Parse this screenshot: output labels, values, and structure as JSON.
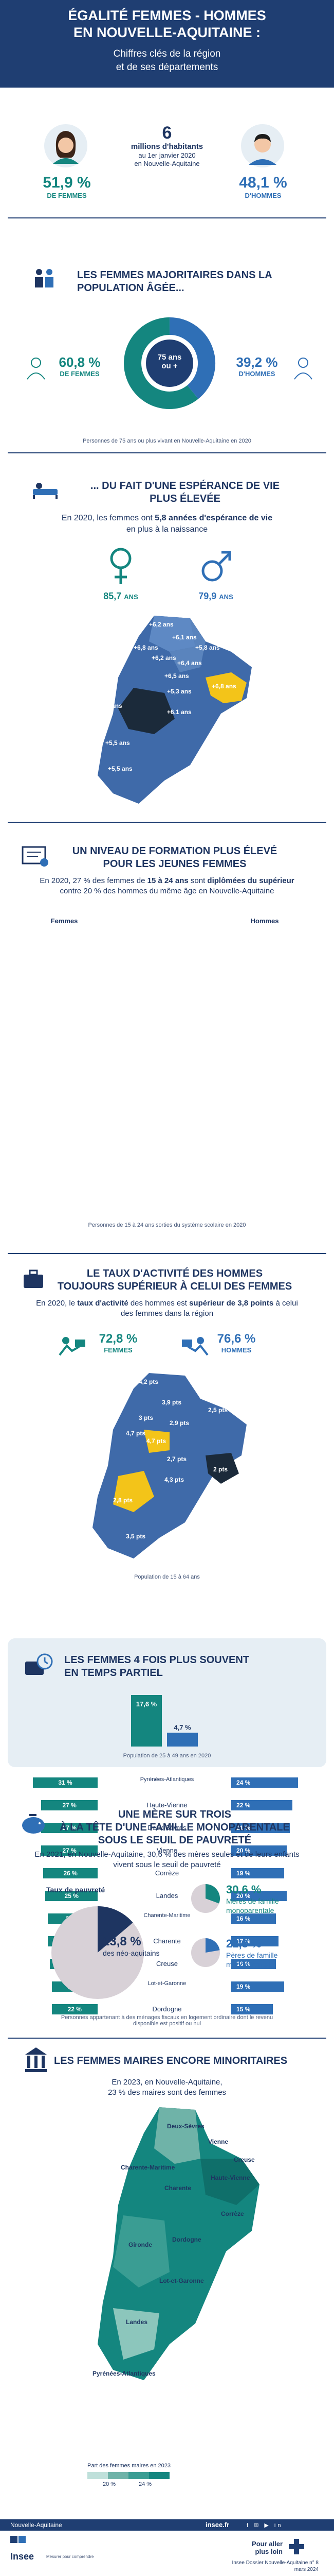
{
  "header": {
    "title_line1": "ÉGALITÉ FEMMES - HOMMES",
    "title_line2": "EN NOUVELLE-AQUITAINE :",
    "subtitle_line1": "Chiffres clés de la région",
    "subtitle_line2": "et de ses départements"
  },
  "population": {
    "total": "6",
    "total_label": "millions d'habitants",
    "date_line": "au 1er janvier 2020",
    "region_line": "en Nouvelle-Aquitaine",
    "women_pct": "51,9 %",
    "women_label": "DE FEMMES",
    "men_pct": "48,1 %",
    "men_label": "D'HOMMES"
  },
  "elderly": {
    "title_line1": "LES FEMMES MAJORITAIRES DANS LA",
    "title_line2": "POPULATION ÂGÉE...",
    "women_pct": "60,8 %",
    "women_label": "DE FEMMES",
    "men_pct": "39,2 %",
    "men_label": "D'HOMMES",
    "center_line1": "75 ans",
    "center_line2": "ou +",
    "note": "Personnes de 75 ans ou plus vivant en Nouvelle-Aquitaine en 2020",
    "women_share": 60.8,
    "men_share": 39.2,
    "colors": {
      "women": "#14867f",
      "men": "#2f6fb6"
    }
  },
  "life_expectancy": {
    "title_line1": "... DU FAIT D'UNE ESPÉRANCE DE VIE",
    "title_line2": "PLUS ÉLEVÉE",
    "text_pre": "En 2020, les femmes ont ",
    "text_bold": "5,8 années d'espérance de vie",
    "text_post": "en plus à la naissance",
    "women_value": "85,7",
    "men_value": "79,9",
    "unit": "ANS",
    "map_labels": [
      "+6,2 ans",
      "+6,1 ans",
      "+6,8 ans",
      "+6,2 ans",
      "+5,8 ans",
      "+6,4 ans",
      "+6,5 ans",
      "+5,3 ans",
      "+6,8 ans",
      "+5,1 ans",
      "+6,1 ans",
      "+5,5 ans",
      "+5,5 ans"
    ]
  },
  "education": {
    "title_line1": "UN NIVEAU DE FORMATION PLUS ÉLEVÉ",
    "title_line2": "POUR LES JEUNES FEMMES",
    "text_pre": "En 2020, 27 % des femmes de ",
    "text_bold1": "15 à 24 ans",
    "text_mid": " sont ",
    "text_bold2": "diplômées du supérieur",
    "text_post": " contre 20 % des hommes du même âge en Nouvelle-Aquitaine",
    "col_women": "Femmes",
    "col_men": "Hommes",
    "rows": [
      {
        "dep": "Gironde",
        "f": "32 %",
        "h": "22 %",
        "fv": 32,
        "hv": 22
      },
      {
        "dep": "Pyrénées-Atlantiques",
        "f": "31 %",
        "h": "24 %",
        "fv": 31,
        "hv": 24
      },
      {
        "dep": "Haute-Vienne",
        "f": "27 %",
        "h": "22 %",
        "fv": 27,
        "hv": 22
      },
      {
        "dep": "Deux-Sèvres",
        "f": "27 %",
        "h": "21 %",
        "fv": 27,
        "hv": 21
      },
      {
        "dep": "Vienne",
        "f": "27 %",
        "h": "20 %",
        "fv": 27,
        "hv": 20
      },
      {
        "dep": "Corrèze",
        "f": "26 %",
        "h": "19 %",
        "fv": 26,
        "hv": 19
      },
      {
        "dep": "Landes",
        "f": "25 %",
        "h": "20 %",
        "fv": 25,
        "hv": 20
      },
      {
        "dep": "Charente-Maritime",
        "f": "24 %",
        "h": "16 %",
        "fv": 24,
        "hv": 16
      },
      {
        "dep": "Charente",
        "f": "24 %",
        "h": "17 %",
        "fv": 24,
        "hv": 17
      },
      {
        "dep": "Creuse",
        "f": "23 %",
        "h": "16 %",
        "fv": 23,
        "hv": 16
      },
      {
        "dep": "Lot-et-Garonne",
        "f": "22 %",
        "h": "19 %",
        "fv": 22,
        "hv": 19
      },
      {
        "dep": "Dordogne",
        "f": "22 %",
        "h": "15 %",
        "fv": 22,
        "hv": 15
      }
    ],
    "note": "Personnes de 15 à 24 ans sorties du système scolaire en 2020"
  },
  "activity": {
    "title_line1": "LE TAUX D'ACTIVITÉ DES HOMMES",
    "title_line2": "TOUJOURS SUPÉRIEUR À CELUI DES FEMMES",
    "text_pre": "En 2020, le ",
    "text_bold1": "taux d'activité",
    "text_mid": " des hommes est ",
    "text_bold2": "supérieur de 3,8 points",
    "text_post": " à celui des femmes dans la région",
    "women_pct": "72,8 %",
    "women_label": "FEMMES",
    "men_pct": "76,6 %",
    "men_label": "HOMMES",
    "map_labels": [
      "4,2 pts",
      "3,9 pts",
      "2,5 pts",
      "3 pts",
      "2,9 pts",
      "4,7 pts",
      "4,7 pts",
      "2 pts",
      "2,7 pts",
      "4,3 pts",
      "2,8 pts",
      "3,5 pts"
    ],
    "note": "Population de 15 à 64 ans"
  },
  "part_time": {
    "title_line1": "LES FEMMES 4 FOIS PLUS SOUVENT",
    "title_line2": "EN TEMPS PARTIEL",
    "women_value": "17,6 %",
    "men_value": "4,7 %",
    "women_num": 17.6,
    "men_num": 4.7,
    "note": "Population de 25 à 49 ans en 2020"
  },
  "poverty": {
    "title_line1": "UNE MÈRE SUR TROIS",
    "title_line2": "À LA TÊTE D'UNE FAMILLE MONOPARENTALE",
    "title_line3": "SOUS LE SEUIL DE PAUVRETÉ",
    "text": "En 2021, en Nouvelle-Aquitaine, 30,6 % des mères seules et de leurs enfants vivent sous le seuil de pauvreté",
    "rate_label": "Taux de pauvreté",
    "overall_pct": "13,8 %",
    "overall_label": "des néo-aquitains",
    "mothers_pct": "30,6 %",
    "mothers_label": "Mères de famille monoparentale",
    "fathers_pct": "22,3 %",
    "fathers_label": "Pères de famille monoparentale",
    "overall_num": 13.8,
    "mothers_num": 30.6,
    "fathers_num": 22.3,
    "note_line1": "Personnes appartenant à des ménages fiscaux en logement ordinaire dont le revenu",
    "note_line2": "disponible est positif ou nul"
  },
  "mayors": {
    "title": "LES FEMMES MAIRES ENCORE MINORITAIRES",
    "text_line1": "En 2023, en Nouvelle-Aquitaine,",
    "text_line2": "23 % des maires sont des femmes",
    "map_labels": [
      "Deux-Sèvres",
      "Vienne",
      "Charente-Maritime",
      "Haute-Vienne",
      "Creuse",
      "Charente",
      "Corrèze",
      "Gironde",
      "Dordogne",
      "Lot-et-Garonne",
      "Landes",
      "Pyrénées-Atlantiques"
    ],
    "legend_title": "Part des femmes maires en 2023",
    "legend_low": "20 %",
    "legend_high": "24 %"
  },
  "footer": {
    "region": "Nouvelle-Aquitaine",
    "site": "insee.fr",
    "logo_text": "Insee",
    "logo_caption": "Mesurer pour comprendre",
    "more_line1": "Pour aller",
    "more_line2": "plus loin",
    "reference_line1": "Insee Dossier Nouvelle-Aquitaine n° 8",
    "reference_line2": "mars 2024"
  }
}
